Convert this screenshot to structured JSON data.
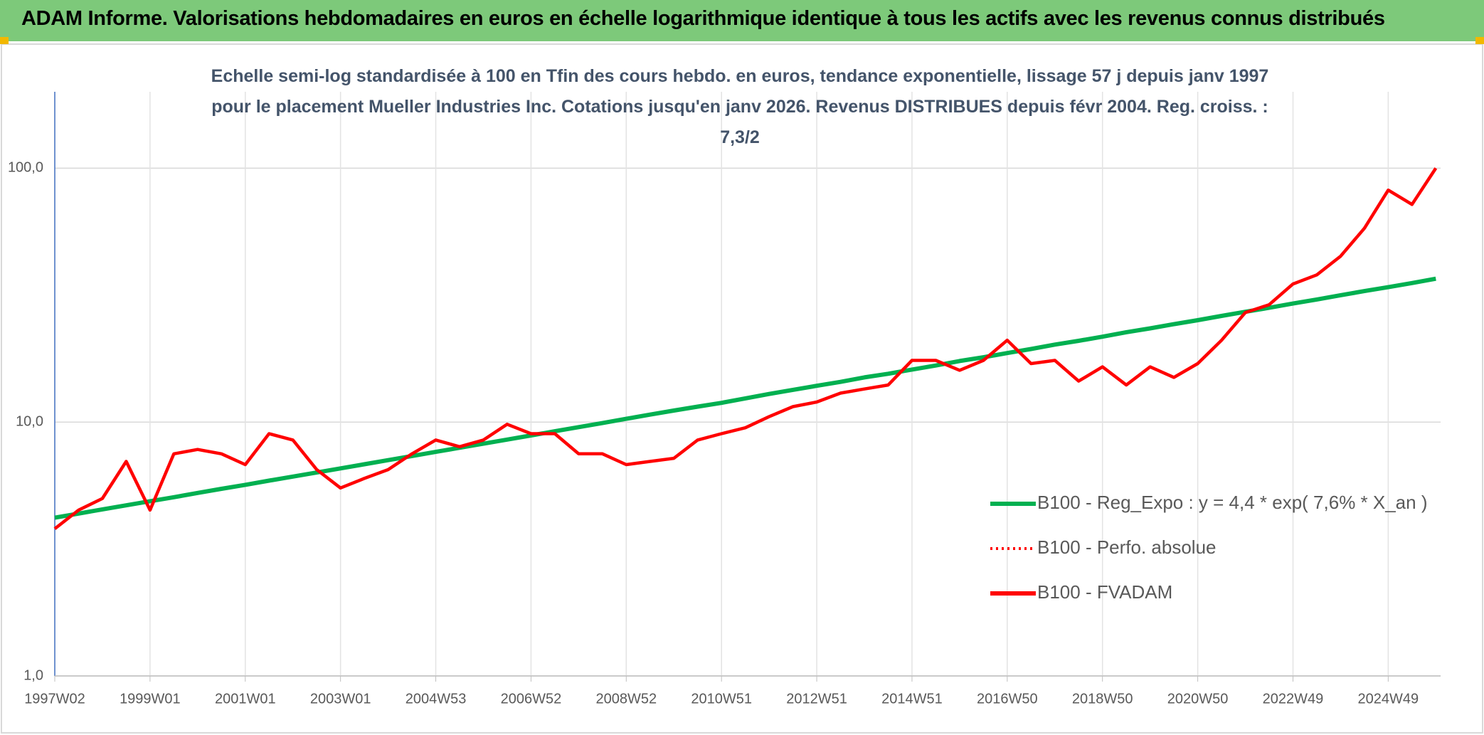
{
  "chart_data": {
    "type": "line",
    "title": "ADAM Informe. Valorisations hebdomadaires en euros en échelle logarithmique identique à tous les actifs avec les revenus connus distribués",
    "subtitle": "Echelle semi-log standardisée à 100 en Tfin des cours hebdo. en euros, tendance exponentielle, lissage 57 j depuis janv 1997 pour le placement Mueller Industries Inc. Cotations jusqu'en janv 2026. Revenus DISTRIBUES depuis févr 2004. Reg. croiss. : 7,3/2",
    "categories": [
      "1997W02",
      null,
      null,
      null,
      "1999W01",
      null,
      null,
      null,
      "2001W01",
      null,
      null,
      null,
      "2003W01",
      null,
      null,
      null,
      "2004W53",
      null,
      null,
      null,
      "2006W52",
      null,
      null,
      null,
      "2008W52",
      null,
      null,
      null,
      "2010W51",
      null,
      null,
      null,
      "2012W51",
      null,
      null,
      null,
      "2014W51",
      null,
      null,
      null,
      "2016W50",
      null,
      null,
      null,
      "2018W50",
      null,
      null,
      null,
      "2020W50",
      null,
      null,
      null,
      "2022W49",
      null,
      null,
      null,
      "2024W49",
      null,
      null
    ],
    "series": [
      {
        "name": "B100 - Reg_Expo : y = 4,4 * exp( 7,6% *  X_an )",
        "color": "#00b050",
        "style": "solid",
        "values": [
          4.2,
          4.36,
          4.53,
          4.7,
          4.88,
          5.06,
          5.26,
          5.46,
          5.66,
          5.88,
          6.1,
          6.33,
          6.57,
          6.82,
          7.08,
          7.35,
          7.63,
          7.92,
          8.22,
          8.53,
          8.86,
          9.2,
          9.55,
          9.91,
          10.3,
          10.7,
          11.1,
          11.5,
          11.9,
          12.4,
          12.9,
          13.4,
          13.9,
          14.4,
          15.0,
          15.5,
          16.1,
          16.7,
          17.4,
          18.0,
          18.7,
          19.4,
          20.2,
          20.9,
          21.7,
          22.6,
          23.4,
          24.3,
          25.2,
          26.2,
          27.2,
          28.2,
          29.3,
          30.4,
          31.6,
          32.8,
          34.0,
          35.3,
          36.7
        ]
      },
      {
        "name": "B100 - Perfo. absolue",
        "color": "#ff0000",
        "style": "dotted",
        "values": [
          3.8,
          4.5,
          5.0,
          7.0,
          4.5,
          7.5,
          7.8,
          7.5,
          6.8,
          9.0,
          8.5,
          6.5,
          5.5,
          6.0,
          6.5,
          7.5,
          8.5,
          8.0,
          8.5,
          9.8,
          9.0,
          9.0,
          7.5,
          7.5,
          6.8,
          7.0,
          7.2,
          8.5,
          9.0,
          9.5,
          10.5,
          11.5,
          12.0,
          13.0,
          13.5,
          14.0,
          17.5,
          17.5,
          16.0,
          17.5,
          21.0,
          17.0,
          17.5,
          14.5,
          16.5,
          14.0,
          16.5,
          15.0,
          17.0,
          21.0,
          27.0,
          29.0,
          35.0,
          38.0,
          45.0,
          58.0,
          82.0,
          72.0,
          100.0
        ]
      },
      {
        "name": "B100 - FVADAM",
        "color": "#ff0000",
        "style": "solid",
        "values": [
          3.8,
          4.5,
          5.0,
          7.0,
          4.5,
          7.5,
          7.8,
          7.5,
          6.8,
          9.0,
          8.5,
          6.5,
          5.5,
          6.0,
          6.5,
          7.5,
          8.5,
          8.0,
          8.5,
          9.8,
          9.0,
          9.0,
          7.5,
          7.5,
          6.8,
          7.0,
          7.2,
          8.5,
          9.0,
          9.5,
          10.5,
          11.5,
          12.0,
          13.0,
          13.5,
          14.0,
          17.5,
          17.5,
          16.0,
          17.5,
          21.0,
          17.0,
          17.5,
          14.5,
          16.5,
          14.0,
          16.5,
          15.0,
          17.0,
          21.0,
          27.0,
          29.0,
          35.0,
          38.0,
          45.0,
          58.0,
          82.0,
          72.0,
          100.0
        ]
      }
    ],
    "log_scale": true,
    "ylim": [
      1,
      200
    ],
    "yticks": [
      {
        "value": 1,
        "label": "1,0"
      },
      {
        "value": 10,
        "label": "10,0"
      },
      {
        "value": 100,
        "label": "100,0"
      }
    ],
    "grid": true,
    "legend": "right"
  }
}
